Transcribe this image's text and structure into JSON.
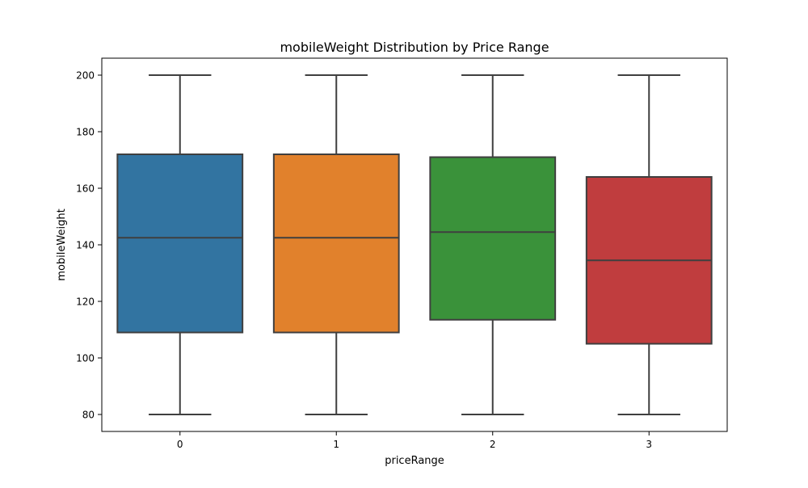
{
  "chart_data": {
    "type": "box",
    "title": "mobileWeight Distribution by Price Range",
    "xlabel": "priceRange",
    "ylabel": "mobileWeight",
    "ylim": [
      74,
      206
    ],
    "yticks": [
      80,
      100,
      120,
      140,
      160,
      180,
      200
    ],
    "categories": [
      "0",
      "1",
      "2",
      "3"
    ],
    "boxes": [
      {
        "category": "0",
        "min": 80,
        "q1": 109,
        "median": 142.5,
        "q3": 172,
        "max": 200,
        "color": "#3274a1"
      },
      {
        "category": "1",
        "min": 80,
        "q1": 109,
        "median": 142.5,
        "q3": 172,
        "max": 200,
        "color": "#e1812c"
      },
      {
        "category": "2",
        "min": 80,
        "q1": 113.5,
        "median": 144.5,
        "q3": 171,
        "max": 200,
        "color": "#3a923a"
      },
      {
        "category": "3",
        "min": 80,
        "q1": 105,
        "median": 134.5,
        "q3": 164,
        "max": 200,
        "color": "#c03d3e"
      }
    ],
    "grid": false,
    "line_color": "#3f3f3f"
  }
}
